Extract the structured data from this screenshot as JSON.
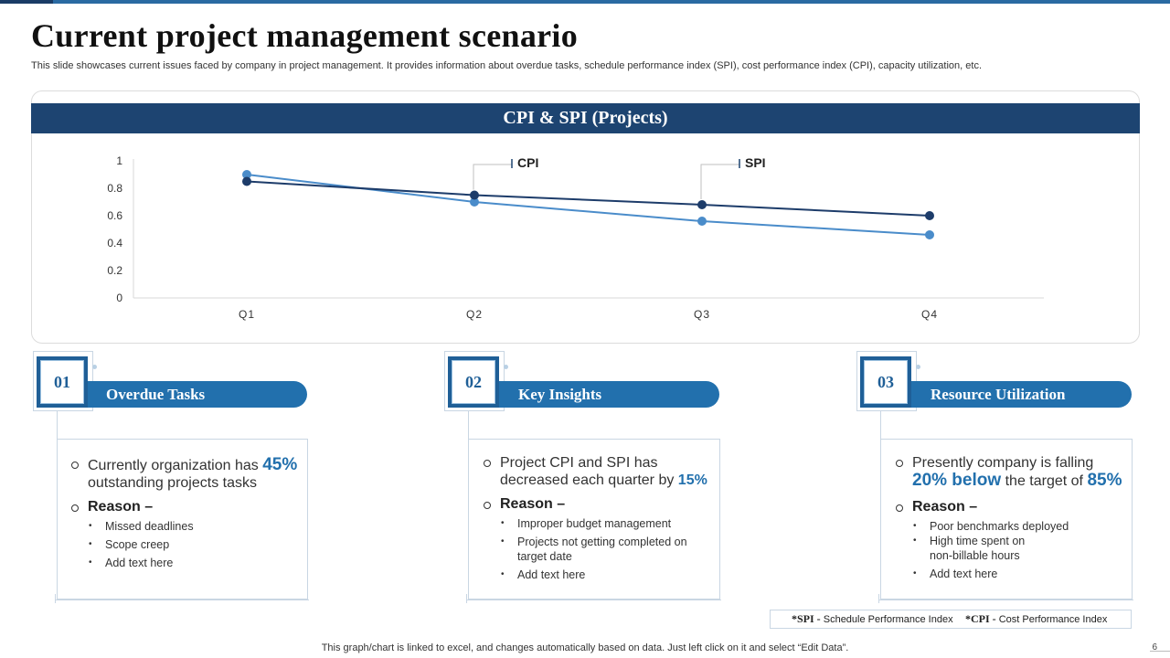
{
  "title": "Current project management scenario",
  "subtitle": "This slide showcases current issues faced by company in project management. It provides information about overdue tasks, schedule performance index (SPI), cost performance index (CPI), capacity utilization, etc.",
  "chart_data": {
    "type": "line",
    "title": "CPI & SPI (Projects)",
    "categories": [
      "Q1",
      "Q2",
      "Q3",
      "Q4"
    ],
    "series": [
      {
        "name": "CPI",
        "values": [
          0.85,
          0.75,
          0.68,
          0.6
        ],
        "color": "#1d3c6a"
      },
      {
        "name": "SPI",
        "values": [
          0.9,
          0.7,
          0.56,
          0.46
        ],
        "color": "#4a8cca"
      }
    ],
    "ylim": [
      0,
      1
    ],
    "yticks": [
      "0",
      "0.2",
      "0.4",
      "0.6",
      "0.8",
      "1"
    ],
    "grid": false,
    "legend": "callouts above lines"
  },
  "cards": [
    {
      "num": "01",
      "title": "Overdue Tasks",
      "line1": "Currently organization has",
      "hl1": "45%",
      "line2": "outstanding projects tasks",
      "reason": "Reason –",
      "items": [
        "Missed deadlines",
        "Scope creep",
        "Add text here"
      ]
    },
    {
      "num": "02",
      "title": "Key Insights",
      "line1": "Project CPI and SPI has",
      "line2": "decreased each quarter by",
      "hl1": "15%",
      "reason": "Reason –",
      "items": [
        "Improper budget management",
        "Projects not getting completed on",
        "target date",
        "Add text here"
      ]
    },
    {
      "num": "03",
      "title": "Resource Utilization",
      "line1": "Presently company is falling",
      "hl1": "20% below",
      "line2": "the target of",
      "hl2": "85%",
      "reason": "Reason –",
      "items": [
        "Poor benchmarks deployed",
        "High time spent on",
        "non-billable hours",
        "Add text here"
      ]
    }
  ],
  "legend": {
    "spi_key": "*SPI -",
    "spi_text": "Schedule Performance Index",
    "cpi_key": "*CPI -",
    "cpi_text": "Cost Performance Index"
  },
  "footnote": "This graph/chart is linked to excel,  and changes automatically based on data. Just left click on it and select “Edit Data”.",
  "page_number": "6"
}
